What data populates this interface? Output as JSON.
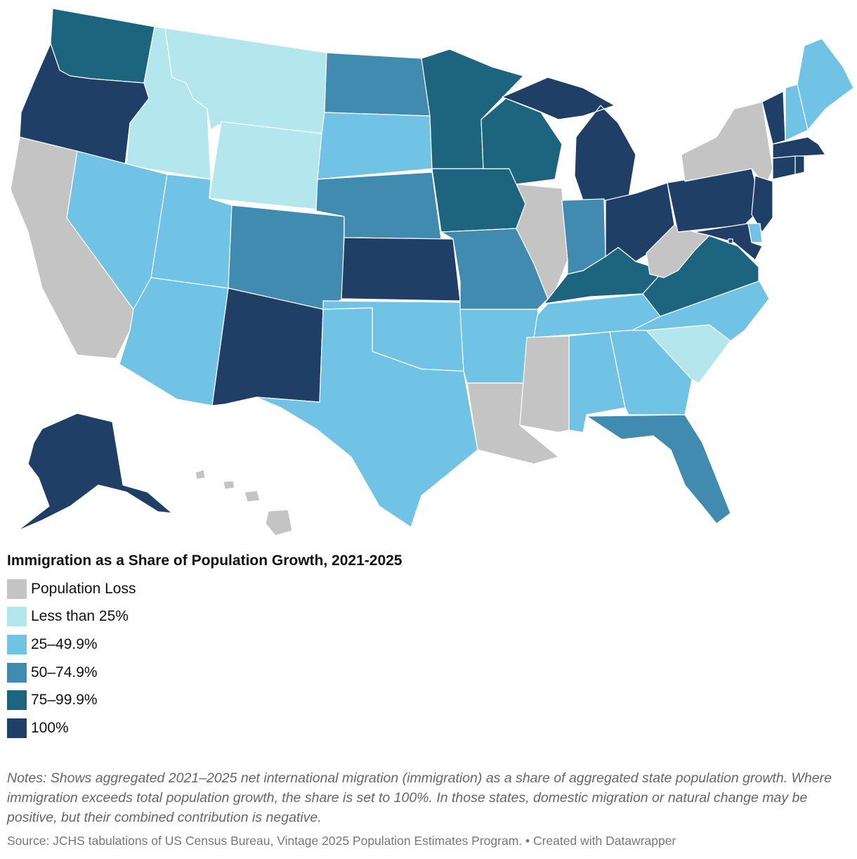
{
  "colors": {
    "loss": "#c4c4c4",
    "lt25": "#b3e6ed",
    "p25_49": "#70c3e5",
    "p50_74": "#428bb0",
    "p75_99": "#1d657f",
    "p100": "#1f3f67"
  },
  "map": {
    "states": [
      {
        "abbr": "WA",
        "cat": "p75_99"
      },
      {
        "abbr": "OR",
        "cat": "p100"
      },
      {
        "abbr": "CA",
        "cat": "loss"
      },
      {
        "abbr": "ID",
        "cat": "lt25"
      },
      {
        "abbr": "MT",
        "cat": "lt25"
      },
      {
        "abbr": "WY",
        "cat": "lt25"
      },
      {
        "abbr": "NV",
        "cat": "p25_49"
      },
      {
        "abbr": "UT",
        "cat": "p25_49"
      },
      {
        "abbr": "AZ",
        "cat": "p25_49"
      },
      {
        "abbr": "CO",
        "cat": "p50_74"
      },
      {
        "abbr": "NM",
        "cat": "p100"
      },
      {
        "abbr": "ND",
        "cat": "p50_74"
      },
      {
        "abbr": "SD",
        "cat": "p25_49"
      },
      {
        "abbr": "NE",
        "cat": "p50_74"
      },
      {
        "abbr": "KS",
        "cat": "p100"
      },
      {
        "abbr": "OK",
        "cat": "p25_49"
      },
      {
        "abbr": "TX",
        "cat": "p25_49"
      },
      {
        "abbr": "MN",
        "cat": "p75_99"
      },
      {
        "abbr": "IA",
        "cat": "p75_99"
      },
      {
        "abbr": "MO",
        "cat": "p50_74"
      },
      {
        "abbr": "AR",
        "cat": "p25_49"
      },
      {
        "abbr": "LA",
        "cat": "loss"
      },
      {
        "abbr": "WI",
        "cat": "p75_99"
      },
      {
        "abbr": "IL",
        "cat": "loss"
      },
      {
        "abbr": "MI",
        "cat": "p100"
      },
      {
        "abbr": "IN",
        "cat": "p50_74"
      },
      {
        "abbr": "OH",
        "cat": "p100"
      },
      {
        "abbr": "KY",
        "cat": "p75_99"
      },
      {
        "abbr": "TN",
        "cat": "p25_49"
      },
      {
        "abbr": "MS",
        "cat": "loss"
      },
      {
        "abbr": "AL",
        "cat": "p25_49"
      },
      {
        "abbr": "GA",
        "cat": "p25_49"
      },
      {
        "abbr": "FL",
        "cat": "p50_74"
      },
      {
        "abbr": "SC",
        "cat": "lt25"
      },
      {
        "abbr": "NC",
        "cat": "p25_49"
      },
      {
        "abbr": "VA",
        "cat": "p75_99"
      },
      {
        "abbr": "WV",
        "cat": "loss"
      },
      {
        "abbr": "PA",
        "cat": "p100"
      },
      {
        "abbr": "NY",
        "cat": "loss"
      },
      {
        "abbr": "NJ",
        "cat": "p100"
      },
      {
        "abbr": "DE",
        "cat": "p25_49"
      },
      {
        "abbr": "MD",
        "cat": "p100"
      },
      {
        "abbr": "DC",
        "cat": "p100"
      },
      {
        "abbr": "VT",
        "cat": "p100"
      },
      {
        "abbr": "NH",
        "cat": "p25_49"
      },
      {
        "abbr": "ME",
        "cat": "p25_49"
      },
      {
        "abbr": "MA",
        "cat": "p100"
      },
      {
        "abbr": "CT",
        "cat": "p100"
      },
      {
        "abbr": "RI",
        "cat": "p100"
      },
      {
        "abbr": "AK",
        "cat": "p100"
      },
      {
        "abbr": "HI",
        "cat": "loss"
      }
    ]
  },
  "legend": {
    "title": "Immigration as a Share of Population Growth, 2021-2025",
    "items": [
      {
        "label": "Population Loss",
        "cat": "loss"
      },
      {
        "label": "Less than 25%",
        "cat": "lt25"
      },
      {
        "label": "25–49.9%",
        "cat": "p25_49"
      },
      {
        "label": "50–74.9%",
        "cat": "p50_74"
      },
      {
        "label": "75–99.9%",
        "cat": "p75_99"
      },
      {
        "label": "100%",
        "cat": "p100"
      }
    ]
  },
  "notes": "Notes: Shows aggregated 2021–2025 net international migration (immigration) as a share of aggregated state population growth. Where immigration exceeds total population growth, the share is set to 100%. In those states, domestic migration or natural change may be positive, but their combined contribution is negative.",
  "source": "Source: JCHS tabulations of US Census Bureau, Vintage 2025 Population Estimates Program. • Created with Datawrapper"
}
